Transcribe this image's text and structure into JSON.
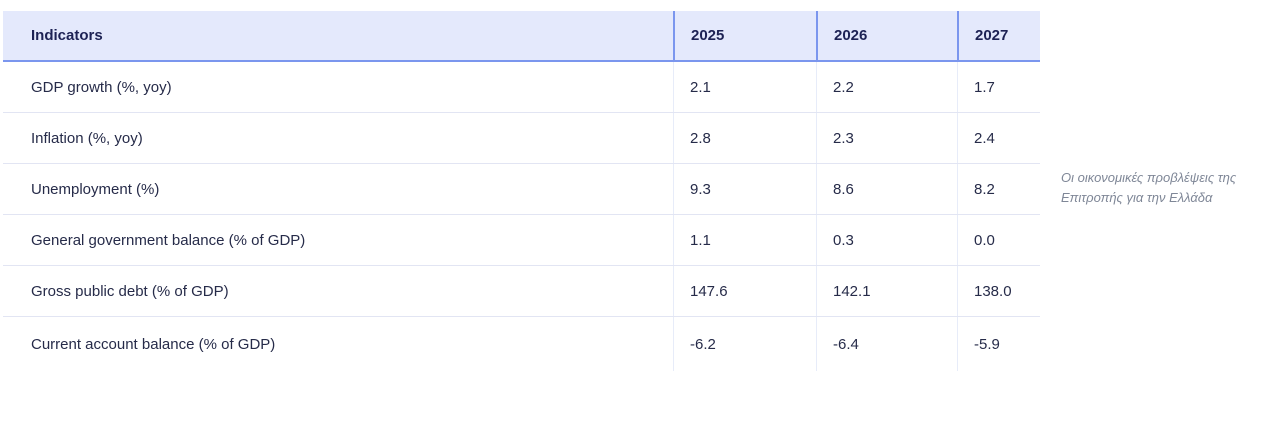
{
  "table": {
    "header": {
      "indicator_label": "Indicators",
      "years": [
        "2025",
        "2026",
        "2027"
      ]
    },
    "rows": [
      {
        "label": "GDP growth (%, yoy)",
        "values": [
          "2.1",
          "2.2",
          "1.7"
        ]
      },
      {
        "label": "Inflation (%, yoy)",
        "values": [
          "2.8",
          "2.3",
          "2.4"
        ]
      },
      {
        "label": "Unemployment (%)",
        "values": [
          "9.3",
          "8.6",
          "8.2"
        ]
      },
      {
        "label": "General government balance (% of GDP)",
        "values": [
          "1.1",
          "0.3",
          "0.0"
        ]
      },
      {
        "label": "Gross public debt (% of GDP)",
        "values": [
          "147.6",
          "142.1",
          "138.0"
        ]
      },
      {
        "label": "Current account balance (% of GDP)",
        "values": [
          "-6.2",
          "-6.4",
          "-5.9"
        ]
      }
    ]
  },
  "annotation": {
    "text": "Οι οικονομικές προβλέψεις της Επιτροπής για την Ελλάδα"
  },
  "colors": {
    "header_background": "#e4e9fc",
    "header_border": "#7b96ee",
    "header_text": "#1d2254",
    "body_text": "#262b49",
    "row_separator": "#e2e5f3",
    "column_separator_body": "#e7ecf9",
    "annotation_text": "#7f8797",
    "page_background": "#ffffff"
  },
  "chart_data": {
    "type": "table",
    "title": "Οι οικονομικές προβλέψεις της Επιτροπής για την Ελλάδα",
    "columns": [
      "Indicators",
      "2025",
      "2026",
      "2027"
    ],
    "categories": [
      "GDP growth (%, yoy)",
      "Inflation (%, yoy)",
      "Unemployment (%)",
      "General government balance (% of GDP)",
      "Gross public debt (% of GDP)",
      "Current account balance (% of GDP)"
    ],
    "series": [
      {
        "name": "2025",
        "values": [
          2.1,
          2.8,
          9.3,
          1.1,
          147.6,
          -6.2
        ]
      },
      {
        "name": "2026",
        "values": [
          2.2,
          2.3,
          8.6,
          0.3,
          142.1,
          -6.4
        ]
      },
      {
        "name": "2027",
        "values": [
          1.7,
          2.4,
          8.2,
          0.0,
          138.0,
          -5.9
        ]
      }
    ],
    "legend_position": "none",
    "grid": "row-and-column-separators"
  }
}
